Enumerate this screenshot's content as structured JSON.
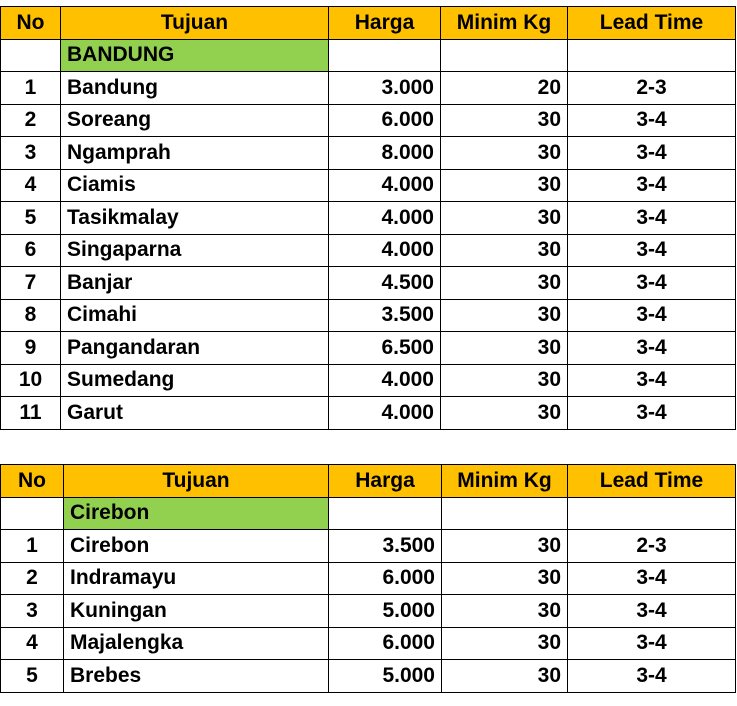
{
  "headers": {
    "no": "No",
    "tujuan": "Tujuan",
    "harga": "Harga",
    "minim_kg": "Minim Kg",
    "lead_time": "Lead Time"
  },
  "tables": [
    {
      "region": "BANDUNG",
      "rows": [
        {
          "no": "1",
          "tujuan": "Bandung",
          "harga": "3.000",
          "minim_kg": "20",
          "lead_time": "2-3"
        },
        {
          "no": "2",
          "tujuan": "Soreang",
          "harga": "6.000",
          "minim_kg": "30",
          "lead_time": "3-4"
        },
        {
          "no": "3",
          "tujuan": "Ngamprah",
          "harga": "8.000",
          "minim_kg": "30",
          "lead_time": "3-4"
        },
        {
          "no": "4",
          "tujuan": "Ciamis",
          "harga": "4.000",
          "minim_kg": "30",
          "lead_time": "3-4"
        },
        {
          "no": "5",
          "tujuan": "Tasikmalay",
          "harga": "4.000",
          "minim_kg": "30",
          "lead_time": "3-4"
        },
        {
          "no": "6",
          "tujuan": "Singaparna",
          "harga": "4.000",
          "minim_kg": "30",
          "lead_time": "3-4"
        },
        {
          "no": "7",
          "tujuan": "Banjar",
          "harga": "4.500",
          "minim_kg": "30",
          "lead_time": "3-4"
        },
        {
          "no": "8",
          "tujuan": "Cimahi",
          "harga": "3.500",
          "minim_kg": "30",
          "lead_time": "3-4"
        },
        {
          "no": "9",
          "tujuan": "Pangandaran",
          "harga": "6.500",
          "minim_kg": "30",
          "lead_time": "3-4"
        },
        {
          "no": "10",
          "tujuan": "Sumedang",
          "harga": "4.000",
          "minim_kg": "30",
          "lead_time": "3-4"
        },
        {
          "no": "11",
          "tujuan": "Garut",
          "harga": "4.000",
          "minim_kg": "30",
          "lead_time": "3-4"
        }
      ]
    },
    {
      "region": "Cirebon",
      "rows": [
        {
          "no": "1",
          "tujuan": "Cirebon",
          "harga": "3.500",
          "minim_kg": "30",
          "lead_time": "2-3"
        },
        {
          "no": "2",
          "tujuan": "Indramayu",
          "harga": "6.000",
          "minim_kg": "30",
          "lead_time": "3-4"
        },
        {
          "no": "3",
          "tujuan": "Kuningan",
          "harga": "5.000",
          "minim_kg": "30",
          "lead_time": "3-4"
        },
        {
          "no": "4",
          "tujuan": "Majalengka",
          "harga": "6.000",
          "minim_kg": "30",
          "lead_time": "3-4"
        },
        {
          "no": "5",
          "tujuan": "Brebes",
          "harga": "5.000",
          "minim_kg": "30",
          "lead_time": "3-4"
        }
      ]
    }
  ]
}
